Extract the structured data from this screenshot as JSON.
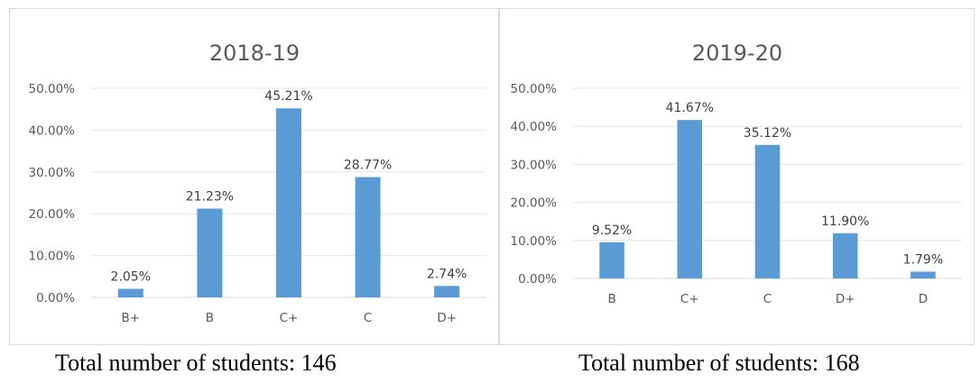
{
  "chart_data": [
    {
      "type": "bar",
      "title": "2018-19",
      "categories": [
        "B+",
        "B",
        "C+",
        "C",
        "D+"
      ],
      "values": [
        2.05,
        21.23,
        45.21,
        28.77,
        2.74
      ],
      "value_labels": [
        "2.05%",
        "21.23%",
        "45.21%",
        "28.77%",
        "2.74%"
      ],
      "ylim": [
        0,
        50
      ],
      "yticks": [
        0,
        10,
        20,
        30,
        40,
        50
      ],
      "ytick_labels": [
        "0.00%",
        "10.00%",
        "20.00%",
        "30.00%",
        "40.00%",
        "50.00%"
      ],
      "grid": true,
      "bar_color": "#5b9bd5",
      "caption": "Total number of students: 146"
    },
    {
      "type": "bar",
      "title": "2019-20",
      "categories": [
        "B",
        "C+",
        "C",
        "D+",
        "D"
      ],
      "values": [
        9.52,
        41.67,
        35.12,
        11.9,
        1.79
      ],
      "value_labels": [
        "9.52%",
        "41.67%",
        "35.12%",
        "11.90%",
        "1.79%"
      ],
      "ylim": [
        0,
        50
      ],
      "yticks": [
        0,
        10,
        20,
        30,
        40,
        50
      ],
      "ytick_labels": [
        "0.00%",
        "10.00%",
        "20.00%",
        "30.00%",
        "40.00%",
        "50.00%"
      ],
      "grid": true,
      "bar_color": "#5b9bd5",
      "caption": "Total number of students: 168"
    }
  ]
}
